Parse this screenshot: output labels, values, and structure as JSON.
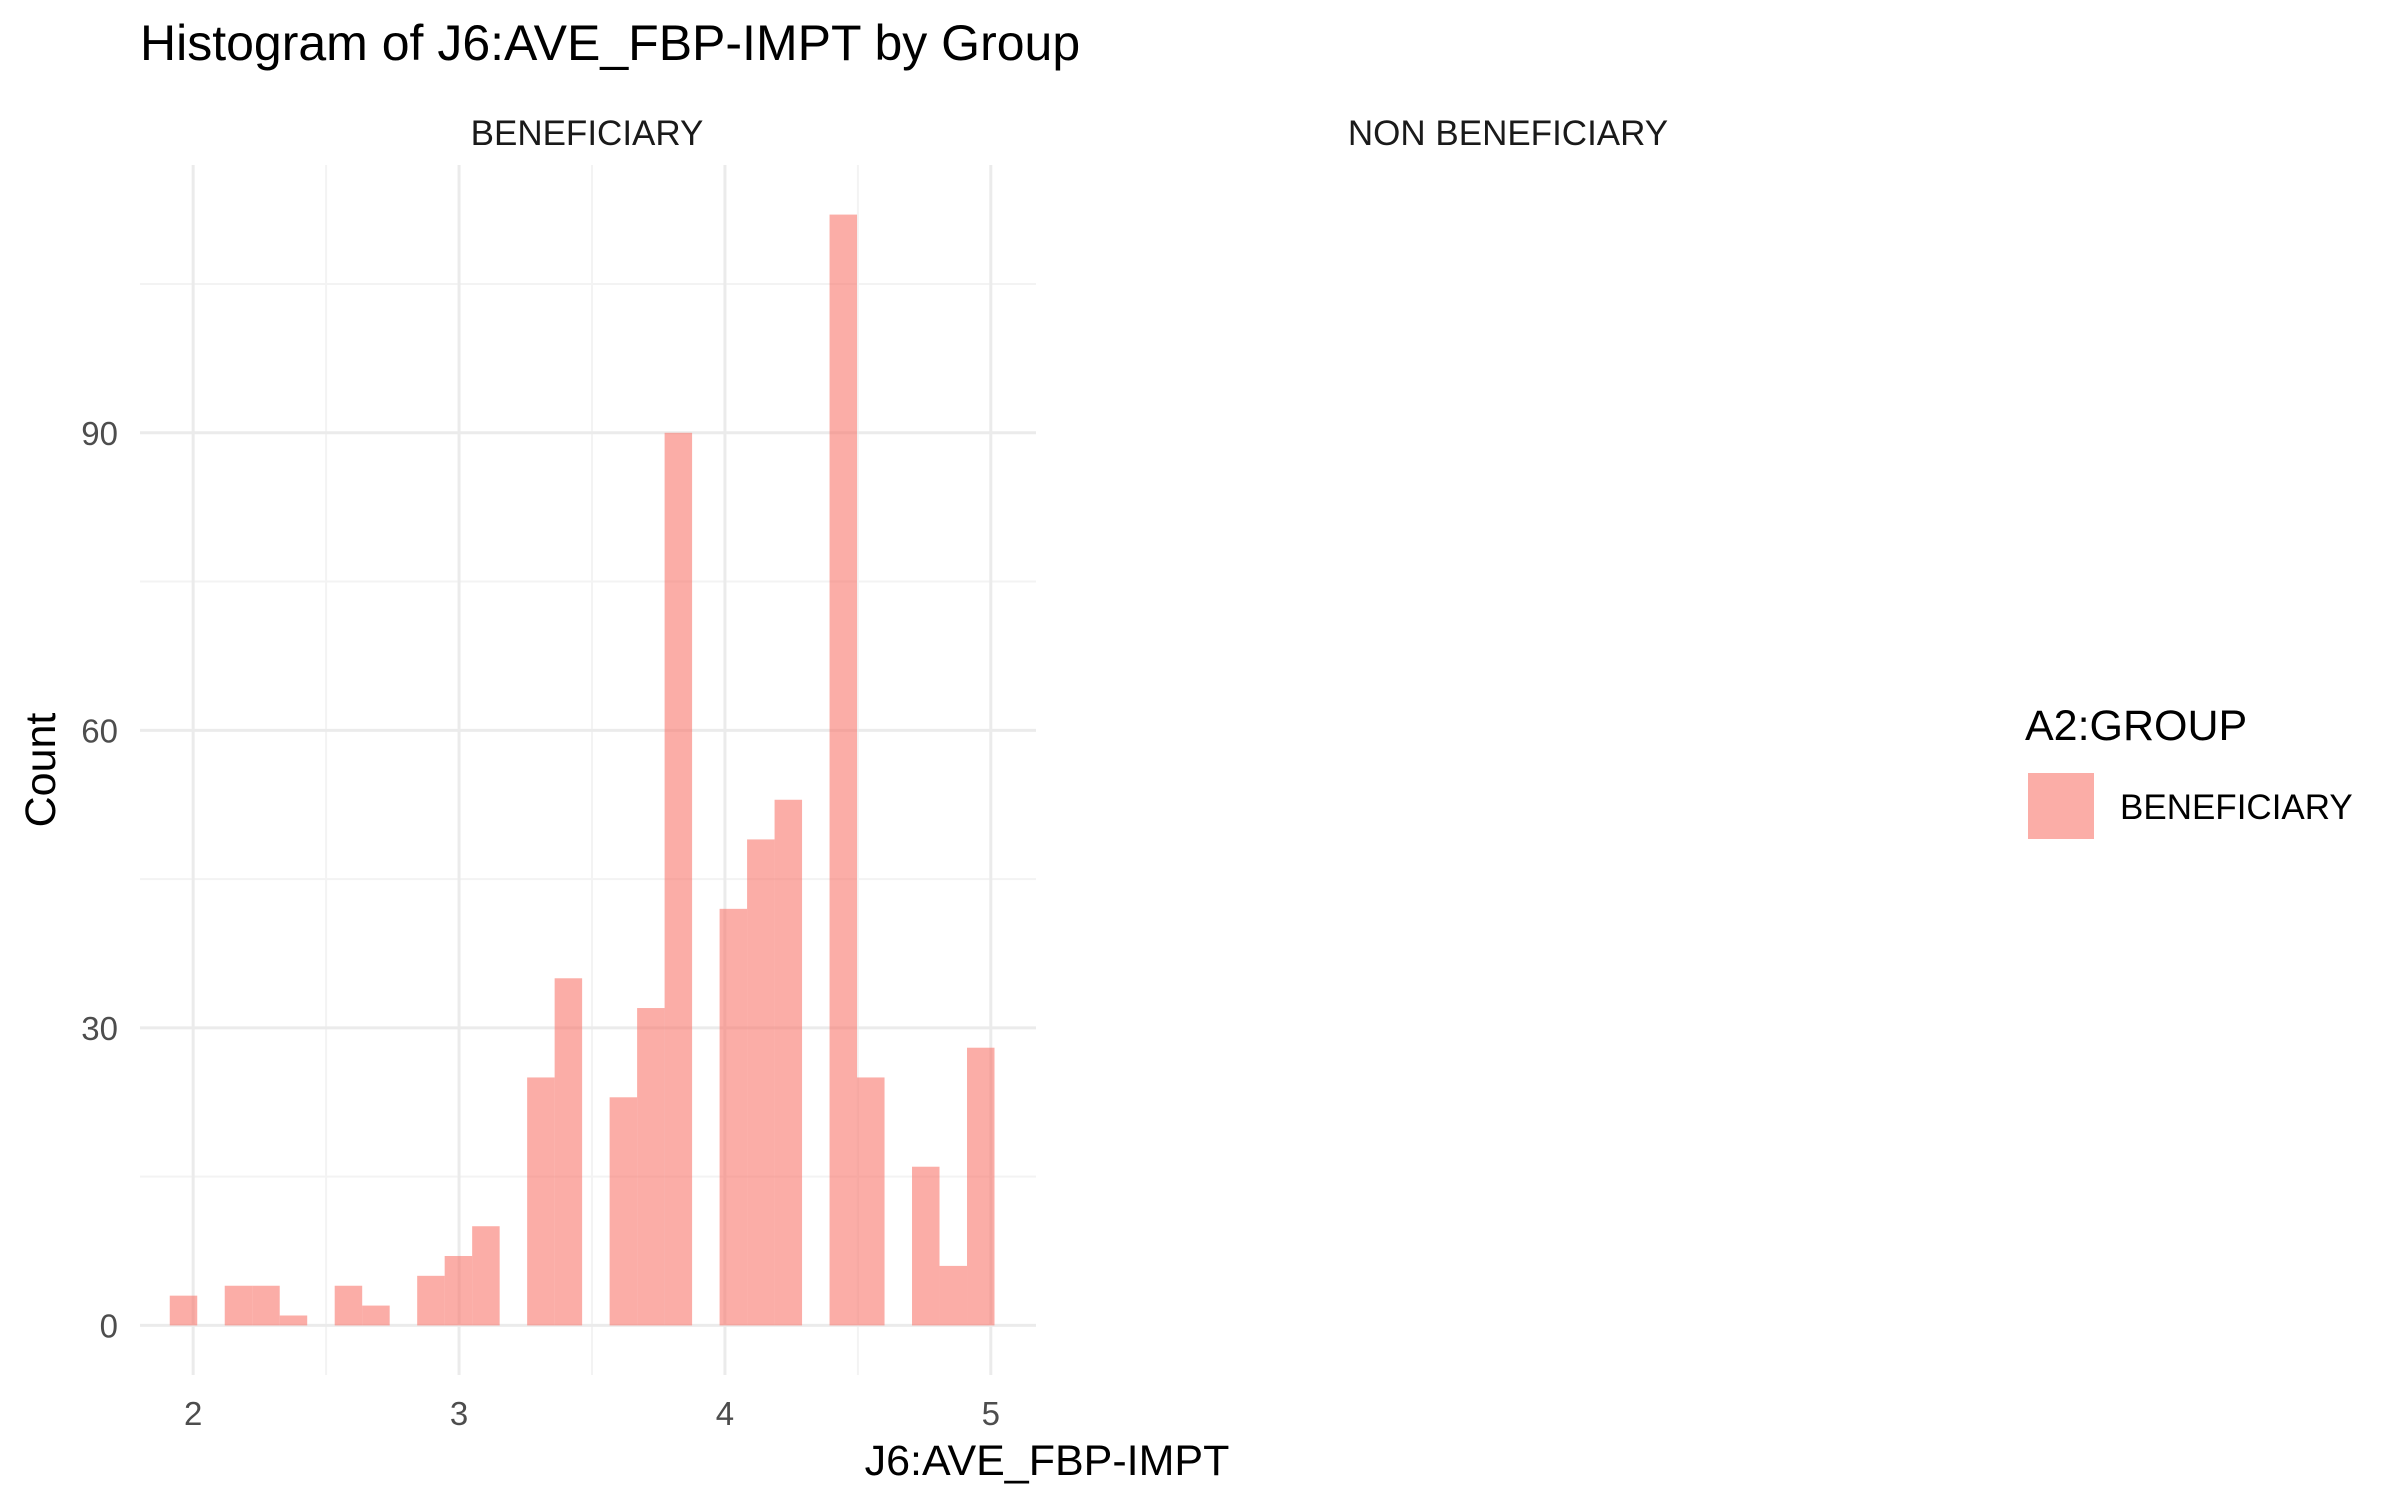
{
  "chart_data": {
    "type": "histogram",
    "title": "Histogram of J6:AVE_FBP-IMPT by Group",
    "xlabel": "J6:AVE_FBP-IMPT",
    "ylabel": "Count",
    "xlim": [
      1.8,
      5.17
    ],
    "ylim": [
      -5,
      117
    ],
    "x_ticks": [
      2,
      3,
      4,
      5
    ],
    "x_tick_labels": [
      "2",
      "3",
      "4",
      "5"
    ],
    "y_ticks": [
      0,
      30,
      60,
      90
    ],
    "y_tick_labels": [
      "0",
      "30",
      "60",
      "90"
    ],
    "bin_width": 0.1034,
    "grid": true,
    "legend": {
      "title": "A2:GROUP",
      "placement": "right",
      "entries": [
        {
          "name": "BENEFICIARY",
          "color": "#F8766D"
        }
      ]
    },
    "panels": [
      {
        "name": "BENEFICIARY",
        "bins": [
          {
            "x": 1.9636,
            "count": 3
          },
          {
            "x": 2.067,
            "count": 0
          },
          {
            "x": 2.1704,
            "count": 4
          },
          {
            "x": 2.2738,
            "count": 4
          },
          {
            "x": 2.3772,
            "count": 1
          },
          {
            "x": 2.4806,
            "count": 0
          },
          {
            "x": 2.584,
            "count": 4
          },
          {
            "x": 2.6874,
            "count": 2
          },
          {
            "x": 2.7908,
            "count": 0
          },
          {
            "x": 2.8942,
            "count": 5
          },
          {
            "x": 2.9976,
            "count": 7
          },
          {
            "x": 3.101,
            "count": 10
          },
          {
            "x": 3.2044,
            "count": 0
          },
          {
            "x": 3.3078,
            "count": 25
          },
          {
            "x": 3.4112,
            "count": 35
          },
          {
            "x": 3.5146,
            "count": 0
          },
          {
            "x": 3.618,
            "count": 23
          },
          {
            "x": 3.7214,
            "count": 32
          },
          {
            "x": 3.8248,
            "count": 90
          },
          {
            "x": 3.9282,
            "count": 0
          },
          {
            "x": 4.0316,
            "count": 42
          },
          {
            "x": 4.135,
            "count": 49
          },
          {
            "x": 4.2384,
            "count": 53
          },
          {
            "x": 4.3418,
            "count": 0
          },
          {
            "x": 4.4452,
            "count": 112
          },
          {
            "x": 4.5486,
            "count": 25
          },
          {
            "x": 4.652,
            "count": 0
          },
          {
            "x": 4.7554,
            "count": 16
          },
          {
            "x": 4.8588,
            "count": 6
          },
          {
            "x": 4.9622,
            "count": 28
          }
        ]
      },
      {
        "name": "NON BENEFICIARY",
        "bins": []
      }
    ],
    "colors": {
      "bar_fill": "#F8766D",
      "grid_major": "#EBEBEB",
      "grid_minor": "#F3F3F3",
      "text": "#000000",
      "tick_text": "#4D4D4D"
    }
  }
}
